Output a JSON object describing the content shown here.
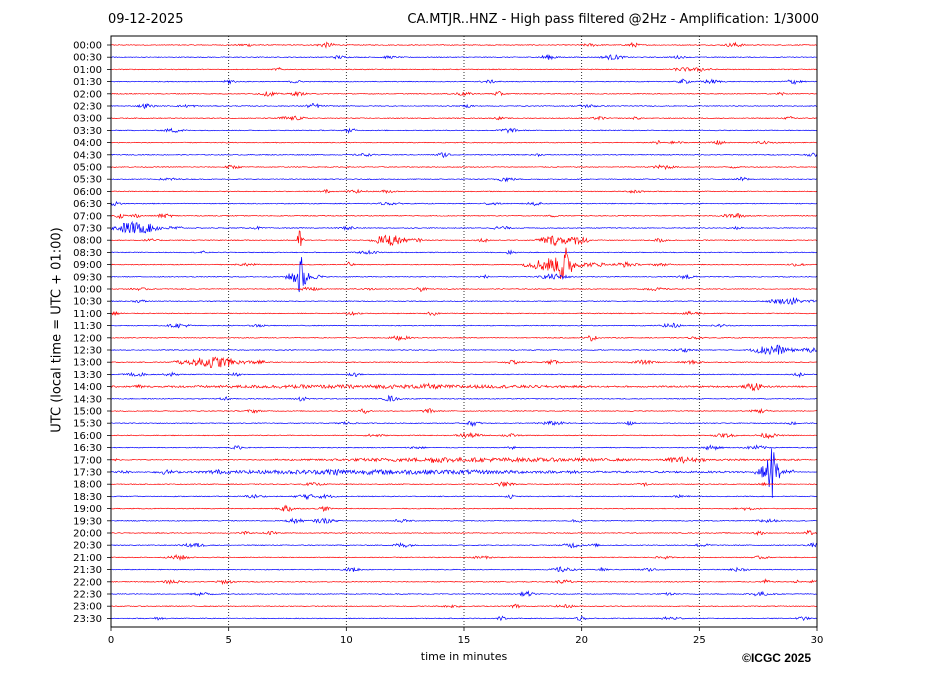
{
  "header": {
    "date": "09-12-2025",
    "title": "CA.MTJR..HNZ - High pass filtered @2Hz - Amplification: 1/3000"
  },
  "footer": {
    "copyright": "©ICGC 2025"
  },
  "chart_data": {
    "type": "line",
    "title": "CA.MTJR..HNZ - High pass filtered @2Hz - Amplification: 1/3000",
    "xlabel": "time in minutes",
    "ylabel": "UTC (local time = UTC + 01:00)",
    "xlim": [
      0,
      30
    ],
    "x_ticks": [
      0,
      5,
      10,
      15,
      20,
      25,
      30
    ],
    "vertical_grid": "dotted at every 5 minutes",
    "colors": {
      "even_rows": "#ff0000",
      "odd_rows": "#0000ff"
    },
    "rows": [
      "00:00",
      "00:30",
      "01:00",
      "01:30",
      "02:00",
      "02:30",
      "03:00",
      "03:30",
      "04:00",
      "04:30",
      "05:00",
      "05:30",
      "06:00",
      "06:30",
      "07:00",
      "07:30",
      "08:00",
      "08:30",
      "09:00",
      "09:30",
      "10:00",
      "10:30",
      "11:00",
      "11:30",
      "12:00",
      "12:30",
      "13:00",
      "13:30",
      "14:00",
      "14:30",
      "15:00",
      "15:30",
      "16:00",
      "16:30",
      "17:00",
      "17:30",
      "18:00",
      "18:30",
      "19:00",
      "19:30",
      "20:00",
      "20:30",
      "21:00",
      "21:30",
      "22:00",
      "22:30",
      "23:00",
      "23:30"
    ],
    "events": [
      {
        "row": "07:30",
        "start_min": 0.0,
        "end_min": 3.0,
        "amplitude": 0.75
      },
      {
        "row": "08:00",
        "start_min": 11.0,
        "end_min": 13.2,
        "amplitude": 0.8
      },
      {
        "row": "08:00",
        "start_min": 18.0,
        "end_min": 20.3,
        "amplitude": 0.7
      },
      {
        "row": "09:00",
        "start_min": 17.5,
        "end_min": 21.0,
        "amplitude": 1.0
      },
      {
        "row": "09:00",
        "start_min": 19.0,
        "end_min": 19.6,
        "amplitude": 2.5
      },
      {
        "row": "08:00",
        "start_min": 7.9,
        "end_min": 8.2,
        "amplitude": 1.5
      },
      {
        "row": "09:30",
        "start_min": 7.4,
        "end_min": 9.0,
        "amplitude": 1.1
      },
      {
        "row": "09:30",
        "start_min": 7.9,
        "end_min": 8.3,
        "amplitude": 2.4
      },
      {
        "row": "13:00",
        "start_min": 3.0,
        "end_min": 6.5,
        "amplitude": 0.8
      },
      {
        "row": "12:30",
        "start_min": 27.5,
        "end_min": 29.2,
        "amplitude": 0.8
      },
      {
        "row": "17:30",
        "start_min": 27.3,
        "end_min": 29.0,
        "amplitude": 1.0
      },
      {
        "row": "17:30",
        "start_min": 27.9,
        "end_min": 28.4,
        "amplitude": 3.5
      },
      {
        "row": "14:00",
        "start_min": 0.0,
        "end_min": 29.5,
        "amplitude": 0.22
      },
      {
        "row": "17:00",
        "start_min": 7.0,
        "end_min": 29.5,
        "amplitude": 0.25
      },
      {
        "row": "17:30",
        "start_min": 1.8,
        "end_min": 27.0,
        "amplitude": 0.3
      }
    ]
  }
}
